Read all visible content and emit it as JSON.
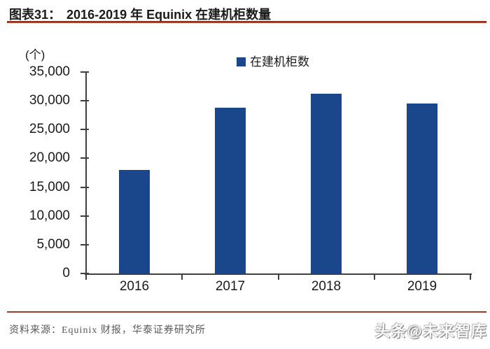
{
  "header": {
    "figure_label": "图表31：",
    "title": "2016-2019 年 Equinix 在建机柜数量"
  },
  "chart_data": {
    "type": "bar",
    "title": "2016-2019 年 Equinix 在建机柜数量",
    "unit_label": "(个)",
    "legend": [
      "在建机柜数"
    ],
    "legend_position": "top-center",
    "categories": [
      "2016",
      "2017",
      "2018",
      "2019"
    ],
    "values": [
      18000,
      28800,
      31200,
      29500
    ],
    "ylim": [
      0,
      35000
    ],
    "ytick_step": 5000,
    "ytick_labels": [
      "0",
      "5,000",
      "10,000",
      "15,000",
      "20,000",
      "25,000",
      "30,000",
      "35,000"
    ],
    "grid": false,
    "bar_color": "#1A478C"
  },
  "footer": {
    "source": "资料来源：Equinix 财报，华泰证券研究所",
    "watermark": "头条@未来智库"
  },
  "colors": {
    "bar": "#1A478C",
    "accent_rule": "#9E3A29",
    "axis": "#3F3F3F",
    "source_text": "#595959"
  }
}
